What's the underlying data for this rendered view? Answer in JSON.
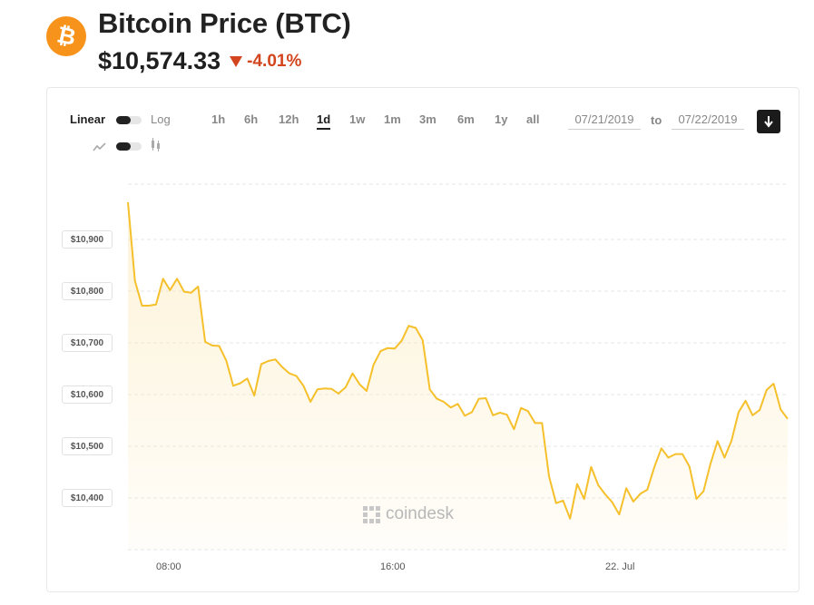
{
  "header": {
    "coin_symbol": "₿",
    "title": "Bitcoin Price (BTC)",
    "price": "$10,574.33",
    "change": "-4.01%",
    "change_direction": "down",
    "colors": {
      "brand": "#f7931a",
      "negative": "#d2451e",
      "line": "#f5c02b"
    }
  },
  "controls": {
    "scale_linear": "Linear",
    "scale_log": "Log",
    "chart_type_line_icon": "line-chart-icon",
    "chart_type_candle_icon": "candlestick-icon",
    "ranges": [
      "1h",
      "6h",
      "12h",
      "1d",
      "1w",
      "1m",
      "3m",
      "6m",
      "1y",
      "all"
    ],
    "active_range": "1d",
    "date_from": "07/21/2019",
    "date_to": "07/22/2019",
    "to_label": "to",
    "download_icon": "download-icon"
  },
  "watermark": "coindesk",
  "chart_data": {
    "type": "area",
    "title": "",
    "xlabel": "",
    "ylabel": "",
    "x_tick_labels": [
      "08:00",
      "16:00",
      "22. Jul"
    ],
    "y_tick_labels": [
      "$10,400",
      "$10,500",
      "$10,600",
      "$10,700",
      "$10,800",
      "$10,900"
    ],
    "ylim": [
      10300,
      11000
    ],
    "grid": true,
    "series": [
      {
        "values": [
          10972,
          10820,
          10772,
          10772,
          10774,
          10824,
          10802,
          10824,
          10799,
          10797,
          10809,
          10702,
          10695,
          10694,
          10666,
          10617,
          10622,
          10631,
          10598,
          10659,
          10665,
          10668,
          10653,
          10641,
          10636,
          10617,
          10586,
          10610,
          10612,
          10611,
          10602,
          10614,
          10641,
          10620,
          10607,
          10658,
          10684,
          10690,
          10689,
          10704,
          10733,
          10729,
          10705,
          10610,
          10592,
          10586,
          10575,
          10582,
          10559,
          10566,
          10592,
          10593,
          10560,
          10565,
          10561,
          10533,
          10574,
          10568,
          10545,
          10545,
          10442,
          10390,
          10395,
          10360,
          10427,
          10398,
          10460,
          10425,
          10407,
          10392,
          10368,
          10419,
          10393,
          10408,
          10416,
          10460,
          10496,
          10478,
          10485,
          10485,
          10461,
          10398,
          10413,
          10466,
          10510,
          10478,
          10511,
          10566,
          10588,
          10560,
          10570,
          10609,
          10621,
          10571,
          10553
        ]
      }
    ]
  }
}
